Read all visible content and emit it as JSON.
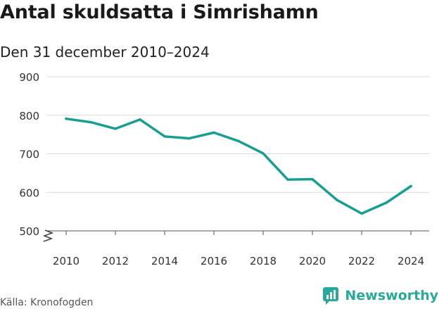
{
  "title": "Antal skuldsatta i Simrishamn",
  "subtitle": "Den 31 december 2010–2024",
  "source": "Källa: Kronofogden",
  "brand": "Newsworthy",
  "colors": {
    "line": "#1a9e91",
    "grid": "#dcdcdc",
    "axis": "#333333",
    "brand": "#2aa89a"
  },
  "chart_data": {
    "type": "line",
    "title": "Antal skuldsatta i Simrishamn",
    "subtitle": "Den 31 december 2010–2024",
    "x": [
      2010,
      2011,
      2012,
      2013,
      2014,
      2015,
      2016,
      2017,
      2018,
      2019,
      2020,
      2021,
      2022,
      2023,
      2024
    ],
    "series": [
      {
        "values": [
          791,
          782,
          765,
          789,
          745,
          740,
          755,
          733,
          701,
          633,
          634,
          580,
          545,
          573,
          616
        ]
      }
    ],
    "xticks": [
      "2010",
      "2012",
      "2014",
      "2016",
      "2018",
      "2020",
      "2022",
      "2024"
    ],
    "yticks": [
      "500",
      "600",
      "700",
      "800",
      "900"
    ],
    "ylim": [
      500,
      900
    ],
    "xlim": [
      2010,
      2024
    ],
    "y_axis_break": true,
    "grid": "horizontal",
    "xlabel": "",
    "ylabel": ""
  }
}
